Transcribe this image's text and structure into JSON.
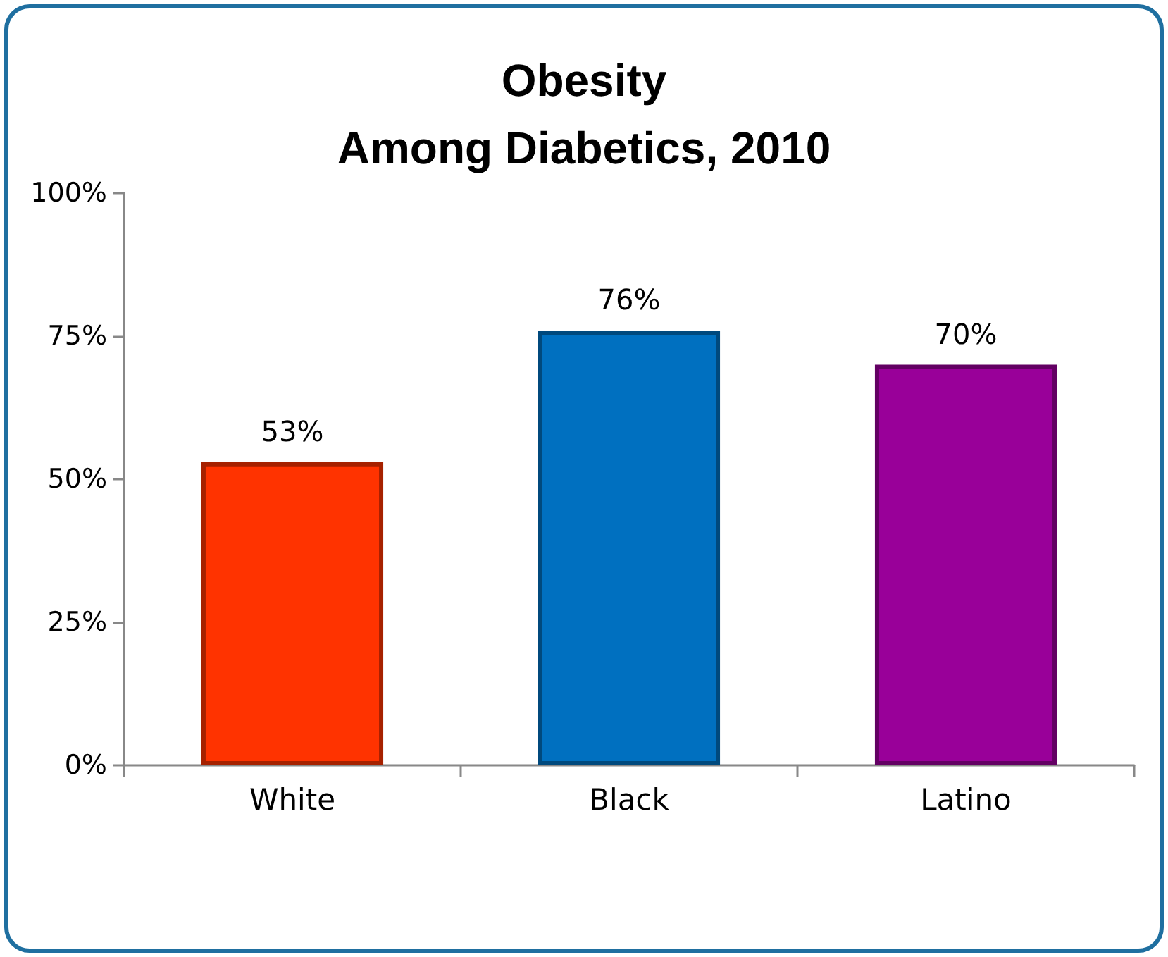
{
  "chart_data": {
    "type": "bar",
    "title": "Obesity\nAmong Diabetics, 2010",
    "categories": [
      "White",
      "Black",
      "Latino"
    ],
    "values": [
      53,
      76,
      70
    ],
    "colors": [
      "#ff3300",
      "#0070c0",
      "#990099"
    ],
    "value_labels": [
      "53%",
      "76%",
      "70%"
    ],
    "ylim": [
      0,
      100
    ],
    "yticks": [
      {
        "value": 0,
        "label": "0%"
      },
      {
        "value": 25,
        "label": "25%"
      },
      {
        "value": 50,
        "label": "50%"
      },
      {
        "value": 75,
        "label": "75%"
      },
      {
        "value": 100,
        "label": "100%"
      }
    ],
    "grid": false
  }
}
